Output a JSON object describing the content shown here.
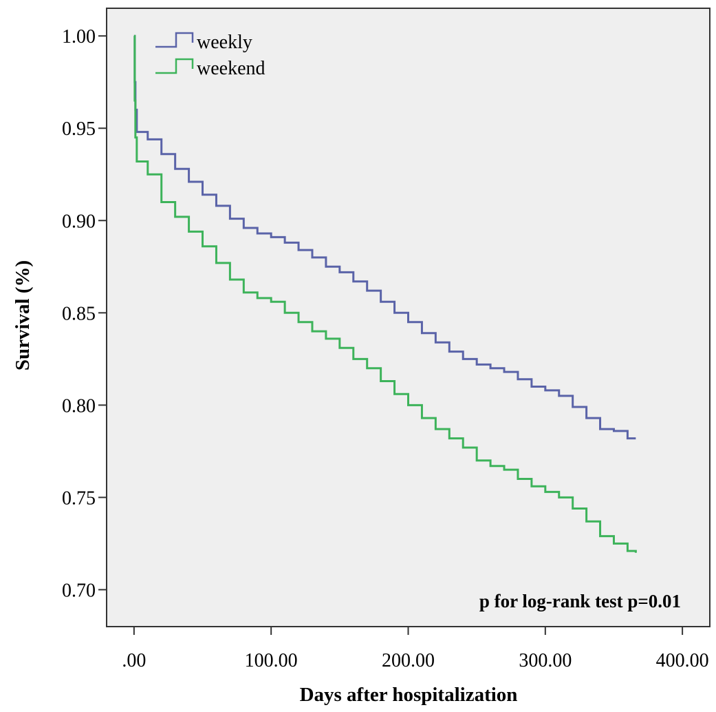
{
  "chart_data": {
    "type": "line",
    "title": "",
    "xlabel": "Days after hospitalization",
    "ylabel": "Survival (%)",
    "xlim": [
      -20,
      420
    ],
    "ylim": [
      0.68,
      1.015
    ],
    "x_ticks": [
      0,
      100,
      200,
      300,
      400
    ],
    "x_tick_labels": [
      ".00",
      "100.00",
      "200.00",
      "300.00",
      "400.00"
    ],
    "y_ticks": [
      0.7,
      0.75,
      0.8,
      0.85,
      0.9,
      0.95,
      1.0
    ],
    "y_tick_labels": [
      "0.70",
      "0.75",
      "0.80",
      "0.85",
      "0.90",
      "0.95",
      "1.00"
    ],
    "grid": false,
    "legend_position": "top-left",
    "annotation": "p for log-rank test p=0.01",
    "series": [
      {
        "name": "weekly",
        "color": "#5a63a8",
        "step": true,
        "points": [
          [
            0,
            1.0
          ],
          [
            0.5,
            0.975
          ],
          [
            1,
            0.96
          ],
          [
            2,
            0.948
          ],
          [
            10,
            0.944
          ],
          [
            20,
            0.936
          ],
          [
            30,
            0.928
          ],
          [
            40,
            0.921
          ],
          [
            50,
            0.914
          ],
          [
            60,
            0.908
          ],
          [
            70,
            0.901
          ],
          [
            80,
            0.896
          ],
          [
            90,
            0.893
          ],
          [
            100,
            0.891
          ],
          [
            110,
            0.888
          ],
          [
            120,
            0.884
          ],
          [
            130,
            0.88
          ],
          [
            140,
            0.875
          ],
          [
            150,
            0.872
          ],
          [
            160,
            0.867
          ],
          [
            170,
            0.862
          ],
          [
            180,
            0.856
          ],
          [
            190,
            0.85
          ],
          [
            200,
            0.845
          ],
          [
            210,
            0.839
          ],
          [
            220,
            0.834
          ],
          [
            230,
            0.829
          ],
          [
            240,
            0.825
          ],
          [
            250,
            0.822
          ],
          [
            260,
            0.82
          ],
          [
            270,
            0.818
          ],
          [
            280,
            0.814
          ],
          [
            290,
            0.81
          ],
          [
            300,
            0.808
          ],
          [
            310,
            0.805
          ],
          [
            320,
            0.799
          ],
          [
            330,
            0.793
          ],
          [
            340,
            0.787
          ],
          [
            350,
            0.786
          ],
          [
            360,
            0.782
          ],
          [
            366,
            0.782
          ]
        ]
      },
      {
        "name": "weekend",
        "color": "#3db35a",
        "step": true,
        "points": [
          [
            0,
            1.0
          ],
          [
            0.5,
            0.965
          ],
          [
            1,
            0.945
          ],
          [
            2,
            0.932
          ],
          [
            10,
            0.925
          ],
          [
            20,
            0.91
          ],
          [
            30,
            0.902
          ],
          [
            40,
            0.894
          ],
          [
            50,
            0.886
          ],
          [
            60,
            0.877
          ],
          [
            70,
            0.868
          ],
          [
            80,
            0.861
          ],
          [
            90,
            0.858
          ],
          [
            100,
            0.856
          ],
          [
            110,
            0.85
          ],
          [
            120,
            0.845
          ],
          [
            130,
            0.84
          ],
          [
            140,
            0.836
          ],
          [
            150,
            0.831
          ],
          [
            160,
            0.825
          ],
          [
            170,
            0.82
          ],
          [
            180,
            0.813
          ],
          [
            190,
            0.806
          ],
          [
            200,
            0.8
          ],
          [
            210,
            0.793
          ],
          [
            220,
            0.787
          ],
          [
            230,
            0.782
          ],
          [
            240,
            0.777
          ],
          [
            250,
            0.77
          ],
          [
            260,
            0.767
          ],
          [
            270,
            0.765
          ],
          [
            280,
            0.76
          ],
          [
            290,
            0.756
          ],
          [
            300,
            0.753
          ],
          [
            310,
            0.75
          ],
          [
            320,
            0.744
          ],
          [
            330,
            0.737
          ],
          [
            340,
            0.729
          ],
          [
            350,
            0.725
          ],
          [
            360,
            0.721
          ],
          [
            366,
            0.72
          ]
        ]
      }
    ]
  }
}
